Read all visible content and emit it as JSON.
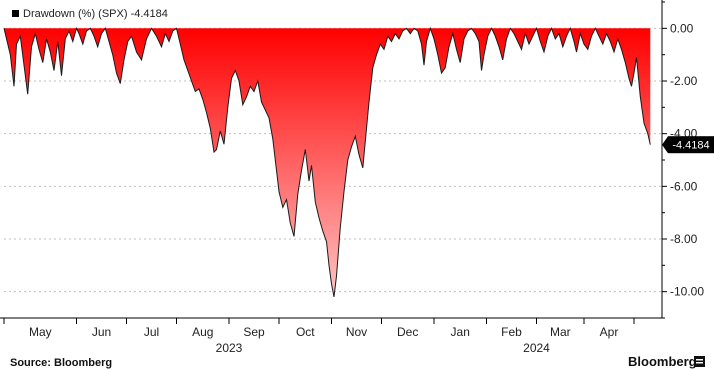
{
  "chart_data": {
    "type": "area",
    "legend": {
      "label": "Drawdown (%) (SPX) -4.4184",
      "position": "top-left"
    },
    "ylim": [
      -11.0,
      1.0
    ],
    "y_ticks": [
      "0.00",
      "-2.00",
      "-4.00",
      "-6.00",
      "-8.00",
      "-10.00"
    ],
    "last_value_label": "-4.4184",
    "x_month_labels": [
      "May",
      "Jun",
      "Jul",
      "Aug",
      "Sep",
      "Oct",
      "Nov",
      "Dec",
      "Jan",
      "Feb",
      "Mar",
      "Apr"
    ],
    "x_year_labels": [
      "2023",
      "2024"
    ],
    "grid": true,
    "series": [
      {
        "values": [
          [
            0.0,
            0
          ],
          [
            0.25,
            -1.0
          ],
          [
            0.4,
            -2.2
          ],
          [
            0.5,
            -0.6
          ],
          [
            0.65,
            -0.3
          ],
          [
            0.8,
            -1.4
          ],
          [
            0.95,
            -2.5
          ],
          [
            1.1,
            -0.7
          ],
          [
            1.25,
            -0.2
          ],
          [
            1.4,
            -0.8
          ],
          [
            1.55,
            -1.3
          ],
          [
            1.7,
            -0.4
          ],
          [
            1.85,
            -0.9
          ],
          [
            2.0,
            -1.6
          ],
          [
            2.15,
            -0.5
          ],
          [
            2.3,
            -1.8
          ],
          [
            2.45,
            -0.4
          ],
          [
            2.6,
            -0.1
          ],
          [
            2.75,
            -0.5
          ],
          [
            2.9,
            0
          ],
          [
            3.0,
            -0.2
          ],
          [
            3.15,
            -0.6
          ],
          [
            3.3,
            -0.1
          ],
          [
            3.45,
            0
          ],
          [
            3.6,
            -0.3
          ],
          [
            3.75,
            -0.7
          ],
          [
            3.9,
            -0.2
          ],
          [
            4.05,
            0
          ],
          [
            4.2,
            -0.5
          ],
          [
            4.35,
            -1.0
          ],
          [
            4.5,
            -1.7
          ],
          [
            4.65,
            -2.1
          ],
          [
            4.8,
            -1.2
          ],
          [
            4.95,
            -0.5
          ],
          [
            5.1,
            -0.3
          ],
          [
            5.3,
            -0.9
          ],
          [
            5.5,
            -1.2
          ],
          [
            5.7,
            -0.4
          ],
          [
            5.9,
            0
          ],
          [
            6.1,
            -0.3
          ],
          [
            6.3,
            -0.7
          ],
          [
            6.45,
            -0.2
          ],
          [
            6.6,
            -0.5
          ],
          [
            6.75,
            -0.1
          ],
          [
            6.9,
            0
          ],
          [
            7.05,
            -0.6
          ],
          [
            7.2,
            -1.2
          ],
          [
            7.35,
            -1.6
          ],
          [
            7.5,
            -2.0
          ],
          [
            7.65,
            -2.4
          ],
          [
            7.8,
            -2.3
          ],
          [
            7.95,
            -2.7
          ],
          [
            8.1,
            -3.2
          ],
          [
            8.25,
            -3.8
          ],
          [
            8.4,
            -4.7
          ],
          [
            8.5,
            -4.6
          ],
          [
            8.65,
            -3.9
          ],
          [
            8.8,
            -4.4
          ],
          [
            8.95,
            -3.0
          ],
          [
            9.1,
            -1.9
          ],
          [
            9.25,
            -1.6
          ],
          [
            9.4,
            -2.0
          ],
          [
            9.55,
            -2.9
          ],
          [
            9.7,
            -2.6
          ],
          [
            9.85,
            -2.2
          ],
          [
            10.0,
            -2.4
          ],
          [
            10.15,
            -2.0
          ],
          [
            10.3,
            -2.8
          ],
          [
            10.45,
            -3.1
          ],
          [
            10.6,
            -3.4
          ],
          [
            10.75,
            -4.2
          ],
          [
            10.9,
            -5.4
          ],
          [
            11.0,
            -6.2
          ],
          [
            11.15,
            -6.8
          ],
          [
            11.3,
            -6.5
          ],
          [
            11.45,
            -7.4
          ],
          [
            11.6,
            -7.9
          ],
          [
            11.75,
            -6.3
          ],
          [
            11.9,
            -5.4
          ],
          [
            12.05,
            -4.6
          ],
          [
            12.2,
            -5.8
          ],
          [
            12.3,
            -5.2
          ],
          [
            12.45,
            -6.6
          ],
          [
            12.6,
            -7.2
          ],
          [
            12.75,
            -7.7
          ],
          [
            12.9,
            -8.1
          ],
          [
            13.0,
            -9.0
          ],
          [
            13.1,
            -9.7
          ],
          [
            13.2,
            -10.2
          ],
          [
            13.3,
            -9.4
          ],
          [
            13.45,
            -7.6
          ],
          [
            13.6,
            -6.2
          ],
          [
            13.75,
            -5.0
          ],
          [
            13.9,
            -4.5
          ],
          [
            14.05,
            -4.1
          ],
          [
            14.2,
            -4.8
          ],
          [
            14.35,
            -5.3
          ],
          [
            14.5,
            -3.8
          ],
          [
            14.6,
            -2.8
          ],
          [
            14.75,
            -1.5
          ],
          [
            14.9,
            -1.0
          ],
          [
            15.05,
            -0.6
          ],
          [
            15.2,
            -0.8
          ],
          [
            15.35,
            -0.3
          ],
          [
            15.5,
            -0.5
          ],
          [
            15.65,
            -0.2
          ],
          [
            15.8,
            -0.4
          ],
          [
            15.95,
            -0.1
          ],
          [
            16.1,
            0
          ],
          [
            16.25,
            -0.2
          ],
          [
            16.4,
            0
          ],
          [
            16.55,
            -0.1
          ],
          [
            16.7,
            -0.6
          ],
          [
            16.8,
            -1.4
          ],
          [
            16.9,
            -0.5
          ],
          [
            17.05,
            0
          ],
          [
            17.2,
            -0.4
          ],
          [
            17.35,
            -1.0
          ],
          [
            17.5,
            -1.7
          ],
          [
            17.65,
            -1.5
          ],
          [
            17.8,
            -0.7
          ],
          [
            17.95,
            -0.2
          ],
          [
            18.1,
            -0.8
          ],
          [
            18.25,
            -1.3
          ],
          [
            18.4,
            -0.4
          ],
          [
            18.55,
            -0.1
          ],
          [
            18.7,
            0
          ],
          [
            18.85,
            -0.2
          ],
          [
            19.0,
            -0.5
          ],
          [
            19.1,
            -1.6
          ],
          [
            19.2,
            -1.0
          ],
          [
            19.35,
            -0.3
          ],
          [
            19.5,
            0
          ],
          [
            19.65,
            -0.3
          ],
          [
            19.8,
            -0.7
          ],
          [
            19.95,
            -1.2
          ],
          [
            20.1,
            -0.4
          ],
          [
            20.25,
            0
          ],
          [
            20.4,
            -0.2
          ],
          [
            20.55,
            -0.5
          ],
          [
            20.7,
            -0.8
          ],
          [
            20.85,
            -0.2
          ],
          [
            21.0,
            -0.6
          ],
          [
            21.15,
            -0.3
          ],
          [
            21.3,
            0
          ],
          [
            21.45,
            -0.5
          ],
          [
            21.6,
            -0.9
          ],
          [
            21.75,
            -0.3
          ],
          [
            21.9,
            0
          ],
          [
            22.05,
            -0.4
          ],
          [
            22.2,
            -0.2
          ],
          [
            22.35,
            -0.7
          ],
          [
            22.5,
            -0.3
          ],
          [
            22.65,
            0
          ],
          [
            22.8,
            -0.5
          ],
          [
            22.9,
            -0.9
          ],
          [
            23.05,
            -0.2
          ],
          [
            23.2,
            -0.6
          ],
          [
            23.35,
            -0.8
          ],
          [
            23.5,
            -0.3
          ],
          [
            23.65,
            0
          ],
          [
            23.8,
            -0.3
          ],
          [
            23.95,
            -0.6
          ],
          [
            24.1,
            -0.2
          ],
          [
            24.25,
            -0.5
          ],
          [
            24.4,
            -0.9
          ],
          [
            24.55,
            -0.4
          ],
          [
            24.7,
            -0.8
          ],
          [
            24.85,
            -1.3
          ],
          [
            25.0,
            -1.9
          ],
          [
            25.1,
            -2.2
          ],
          [
            25.2,
            -1.7
          ],
          [
            25.3,
            -1.1
          ],
          [
            25.45,
            -2.6
          ],
          [
            25.6,
            -3.6
          ],
          [
            25.75,
            -4.0
          ],
          [
            25.85,
            -4.4184
          ]
        ]
      }
    ]
  },
  "footer": {
    "source": "Source: Bloomberg",
    "brand": "Bloomberg"
  },
  "colors": {
    "area_top": "#ff0000",
    "area_bottom": "#ffc4c4",
    "outline": "#1a1a1a",
    "grid": "#bfbfbf",
    "axis": "#000000"
  }
}
